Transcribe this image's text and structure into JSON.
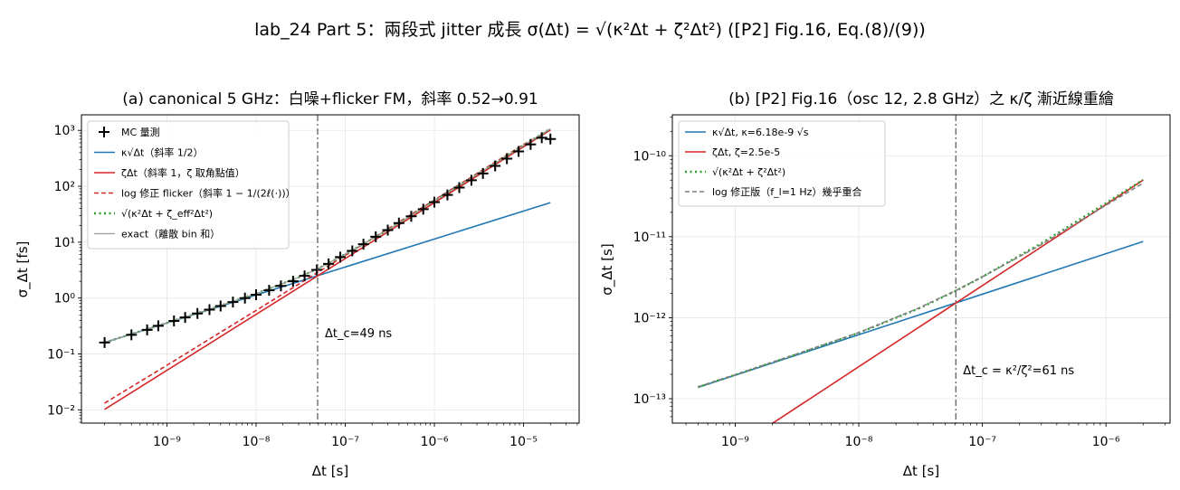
{
  "figure": {
    "suptitle": "lab_24 Part 5：兩段式 jitter 成長 σ(Δt) = √(κ²Δt + ζ²Δt²)  ([P2] Fig.16, Eq.(8)/(9))"
  },
  "chart_data": [
    {
      "type": "line",
      "title": "(a) canonical 5 GHz：白噪+flicker FM，斜率 0.52→0.91",
      "xlabel": "Δt [s]",
      "ylabel": "σ_Δt [fs]",
      "xscale": "log",
      "yscale": "log",
      "xlim": [
        1.1e-10,
        4.2e-05
      ],
      "ylim": [
        0.0058,
        1900
      ],
      "xticks": [
        1e-09,
        1e-08,
        1e-07,
        1e-06,
        1e-05
      ],
      "xtick_labels": [
        "10⁻⁹",
        "10⁻⁸",
        "10⁻⁷",
        "10⁻⁶",
        "10⁻⁵"
      ],
      "yticks": [
        0.01,
        0.1,
        1,
        10,
        100,
        1000
      ],
      "ytick_labels": [
        "10⁻²",
        "10⁻¹",
        "10⁰",
        "10¹",
        "10²",
        "10³"
      ],
      "grid": true,
      "legend": "top-left",
      "vline": {
        "x": 4.9e-08,
        "label": "Δt_c=49 ns"
      },
      "series": [
        {
          "name": "MC 量測",
          "style": "marker-plus",
          "color": "#000000",
          "x": [
            2e-10,
            4e-10,
            6e-10,
            8e-10,
            1.2e-09,
            1.6e-09,
            2.2e-09,
            3e-09,
            4e-09,
            5.5e-09,
            7.5e-09,
            1e-08,
            1.4e-08,
            1.9e-08,
            2.6e-08,
            3.5e-08,
            4.8e-08,
            6.5e-08,
            8.8e-08,
            1.2e-07,
            1.6e-07,
            2.2e-07,
            3e-07,
            4e-07,
            5.5e-07,
            7.5e-07,
            1e-06,
            1.4e-06,
            1.9e-06,
            2.6e-06,
            3.5e-06,
            4.8e-06,
            6.5e-06,
            8.8e-06,
            1.2e-05,
            1.6e-05,
            2e-05
          ],
          "y": [
            0.16,
            0.22,
            0.27,
            0.32,
            0.39,
            0.45,
            0.53,
            0.62,
            0.72,
            0.85,
            1.0,
            1.15,
            1.38,
            1.65,
            2.0,
            2.5,
            3.2,
            4.1,
            5.4,
            7.0,
            9.2,
            12.5,
            16.5,
            22,
            29,
            39,
            52,
            70,
            95,
            128,
            170,
            232,
            312,
            420,
            560,
            740,
            700
          ]
        },
        {
          "name": "κ√Δt（斜率 1/2）",
          "style": "solid",
          "color": "#1f77b4",
          "x": [
            2e-10,
            2e-05
          ],
          "y": [
            0.16,
            51
          ]
        },
        {
          "name": "ζΔt（斜率 1，ζ 取角點值）",
          "style": "solid",
          "color": "#d62728",
          "x": [
            2e-10,
            2e-05
          ],
          "y": [
            0.0102,
            1020
          ]
        },
        {
          "name": "log 修正 flicker（斜率 1 − 1/(2ℓ(·))）",
          "style": "dashed",
          "color": "#d62728",
          "x": [
            2e-10,
            1e-09,
            1e-08,
            1e-07,
            1e-06,
            1e-05,
            2e-05
          ],
          "y": [
            0.0132,
            0.063,
            0.6,
            5.8,
            57,
            560,
            1010
          ]
        },
        {
          "name": "√(κ²Δt + ζ_eff²Δt²)",
          "style": "dotted",
          "color": "#2ca02c",
          "x": [
            2e-10,
            5e-10,
            1e-09,
            3e-09,
            1e-08,
            3e-08,
            5e-08,
            1e-07,
            3e-07,
            1e-06,
            3e-06,
            1e-05,
            2e-05
          ],
          "y": [
            0.16,
            0.255,
            0.36,
            0.63,
            1.2,
            2.35,
            3.4,
            6.1,
            16.5,
            55,
            163,
            540,
            1070
          ]
        },
        {
          "name": "exact（離散 bin 和）",
          "style": "solid-gray",
          "color": "#999999",
          "x": [
            2e-10,
            5e-10,
            1e-09,
            3e-09,
            1e-08,
            3e-08,
            5e-08,
            1e-07,
            3e-07,
            1e-06,
            3e-06,
            1e-05,
            2e-05
          ],
          "y": [
            0.16,
            0.255,
            0.36,
            0.63,
            1.2,
            2.35,
            3.4,
            6.1,
            16.5,
            55,
            163,
            540,
            1070
          ]
        }
      ]
    },
    {
      "type": "line",
      "title": "(b) [P2] Fig.16（osc 12, 2.8 GHz）之 κ/ζ 漸近線重繪",
      "xlabel": "Δt [s]",
      "ylabel": "σ_Δt [s]",
      "xscale": "log",
      "yscale": "log",
      "xlim": [
        3.1e-10,
        3.3e-06
      ],
      "ylim": [
        5e-14,
        3.2e-10
      ],
      "xticks": [
        1e-09,
        1e-08,
        1e-07,
        1e-06
      ],
      "xtick_labels": [
        "10⁻⁹",
        "10⁻⁸",
        "10⁻⁷",
        "10⁻⁶"
      ],
      "yticks": [
        1e-13,
        1e-12,
        1e-11,
        1e-10
      ],
      "ytick_labels": [
        "10⁻¹³",
        "10⁻¹²",
        "10⁻¹¹",
        "10⁻¹⁰"
      ],
      "grid": true,
      "legend": "top-left",
      "vline": {
        "x": 6.1e-08,
        "label": "Δt_c = κ²/ζ²=61 ns"
      },
      "series": [
        {
          "name": "κ√Δt, κ=6.18e-9 √s",
          "style": "solid",
          "color": "#1f77b4",
          "x": [
            5e-10,
            2e-06
          ],
          "y": [
            1.38e-13,
            8.74e-12
          ]
        },
        {
          "name": "ζΔt, ζ=2.5e-5",
          "style": "solid",
          "color": "#d62728",
          "x": [
            1.25e-09,
            2e-06
          ],
          "y": [
            3.1e-14,
            5e-11
          ]
        },
        {
          "name": "√(κ²Δt + ζ²Δt²)",
          "style": "dotted",
          "color": "#2ca02c",
          "x": [
            5e-10,
            1e-09,
            3e-09,
            1e-08,
            3e-08,
            6.1e-08,
            1e-07,
            3e-07,
            1e-06,
            2e-06
          ],
          "y": [
            1.39e-13,
            1.97e-13,
            3.45e-13,
            6.5e-13,
            1.28e-12,
            2.15e-12,
            3.2e-12,
            8.3e-12,
            2.6e-11,
            5.05e-11
          ]
        },
        {
          "name": "log 修正版（f_l=1 Hz）幾乎重合",
          "style": "dashed-gray",
          "color": "#7f7f7f",
          "x": [
            5e-10,
            1e-09,
            3e-09,
            1e-08,
            3e-08,
            6.1e-08,
            1e-07,
            3e-07,
            1e-06,
            2e-06
          ],
          "y": [
            1.4e-13,
            1.98e-13,
            3.47e-13,
            6.55e-13,
            1.3e-12,
            2.17e-12,
            3.2e-12,
            8e-12,
            2.45e-11,
            4.6e-11
          ]
        }
      ]
    }
  ]
}
